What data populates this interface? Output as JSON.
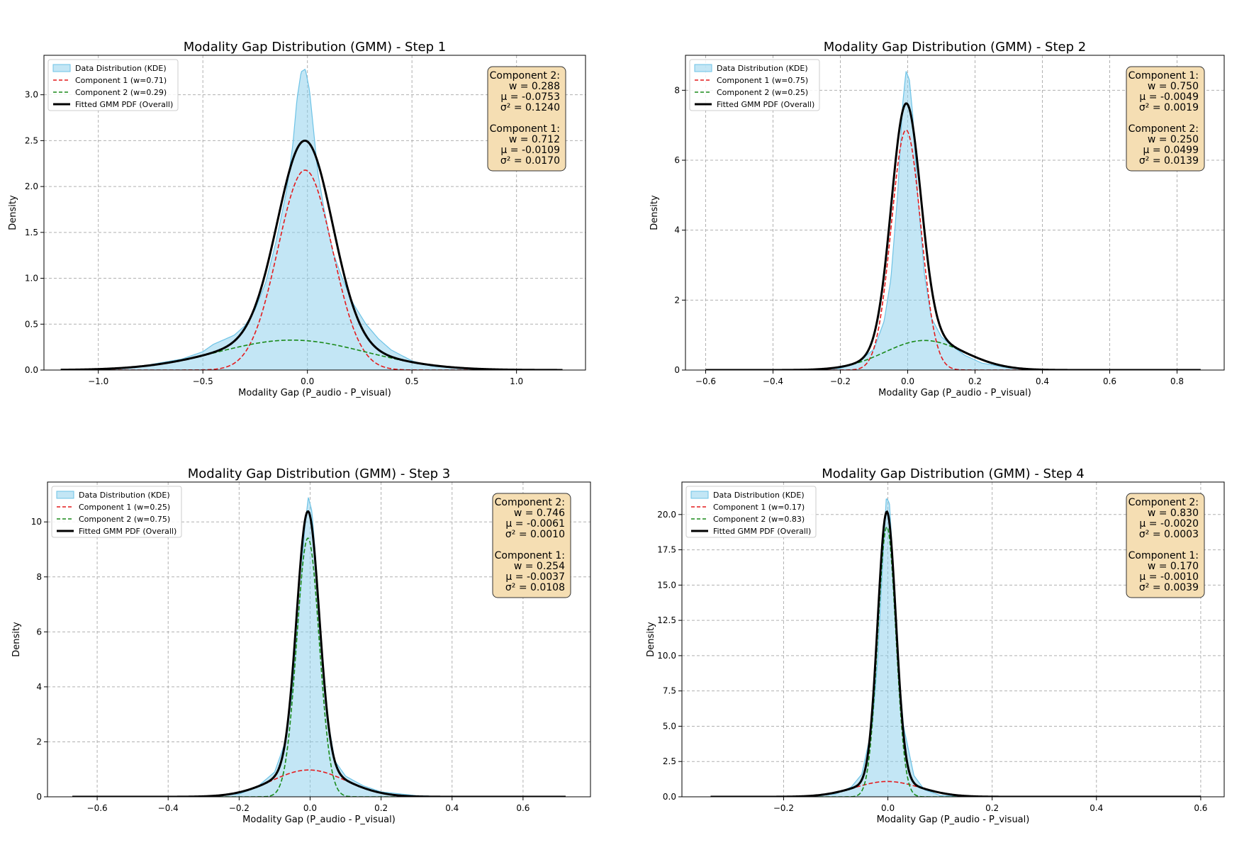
{
  "colors": {
    "kde_fill": "#87ceeb",
    "kde_line": "#6ec3e6",
    "comp1": "#e41a1c",
    "comp2": "#1a8a1a",
    "overall": "#000000",
    "box_fill": "#f5deb3",
    "grid": "#b0b0b0"
  },
  "chart_data": [
    {
      "type": "line",
      "title": "Modality Gap Distribution (GMM) - Step 1",
      "xlabel": "Modality Gap (P_audio - P_visual)",
      "ylabel": "Density",
      "xlim": [
        -1.26,
        1.33
      ],
      "ylim": [
        0,
        3.43
      ],
      "xticks": [
        -1.0,
        -0.5,
        0.0,
        0.5,
        1.0
      ],
      "xtick_labels": [
        "−1.0",
        "−0.5",
        "0.0",
        "0.5",
        "1.0"
      ],
      "yticks": [
        0.0,
        0.5,
        1.0,
        1.5,
        2.0,
        2.5,
        3.0
      ],
      "ytick_labels": [
        "0.0",
        "0.5",
        "1.0",
        "1.5",
        "2.0",
        "2.5",
        "3.0"
      ],
      "x_range": [
        -1.18,
        1.22
      ],
      "legend": [
        "Data Distribution (KDE)",
        "Component 1 (w=0.71)",
        "Component 2 (w=0.29)",
        "Fitted GMM PDF (Overall)"
      ],
      "legend_position": "upper-left",
      "components": [
        {
          "name": "Component 1",
          "weight": 0.712,
          "mean": -0.0109,
          "variance": 0.017
        },
        {
          "name": "Component 2",
          "weight": 0.288,
          "mean": -0.0753,
          "variance": 0.124
        }
      ],
      "kde_points": [
        [
          -1.18,
          0.0
        ],
        [
          -1.0,
          0.01
        ],
        [
          -0.8,
          0.04
        ],
        [
          -0.6,
          0.12
        ],
        [
          -0.5,
          0.2
        ],
        [
          -0.45,
          0.28
        ],
        [
          -0.4,
          0.33
        ],
        [
          -0.35,
          0.38
        ],
        [
          -0.3,
          0.48
        ],
        [
          -0.25,
          0.66
        ],
        [
          -0.2,
          0.95
        ],
        [
          -0.15,
          1.4
        ],
        [
          -0.1,
          1.95
        ],
        [
          -0.07,
          2.45
        ],
        [
          -0.05,
          2.95
        ],
        [
          -0.03,
          3.25
        ],
        [
          -0.01,
          3.28
        ],
        [
          0.01,
          3.05
        ],
        [
          0.03,
          2.6
        ],
        [
          0.05,
          2.15
        ],
        [
          0.08,
          1.75
        ],
        [
          0.12,
          1.3
        ],
        [
          0.17,
          0.98
        ],
        [
          0.22,
          0.72
        ],
        [
          0.28,
          0.5
        ],
        [
          0.34,
          0.34
        ],
        [
          0.4,
          0.22
        ],
        [
          0.5,
          0.1
        ],
        [
          0.6,
          0.04
        ],
        [
          0.8,
          0.01
        ],
        [
          1.0,
          0.0
        ],
        [
          1.22,
          0.0
        ]
      ],
      "annotation": {
        "lines": [
          "Component 2:",
          "w = 0.288",
          "μ = -0.0753",
          "σ² = 0.1240",
          "",
          "Component 1:",
          "w = 0.712",
          "μ = -0.0109",
          "σ² = 0.0170"
        ]
      }
    },
    {
      "type": "line",
      "title": "Modality Gap Distribution (GMM) - Step 2",
      "xlabel": "Modality Gap (P_audio - P_visual)",
      "ylabel": "Density",
      "xlim": [
        -0.66,
        0.94
      ],
      "ylim": [
        0,
        9.0
      ],
      "xticks": [
        -0.6,
        -0.4,
        -0.2,
        0.0,
        0.2,
        0.4,
        0.6,
        0.8
      ],
      "xtick_labels": [
        "−0.6",
        "−0.4",
        "−0.2",
        "0.0",
        "0.2",
        "0.4",
        "0.6",
        "0.8"
      ],
      "yticks": [
        0,
        2,
        4,
        6,
        8
      ],
      "ytick_labels": [
        "0",
        "2",
        "4",
        "6",
        "8"
      ],
      "x_range": [
        -0.6,
        0.87
      ],
      "legend": [
        "Data Distribution (KDE)",
        "Component 1 (w=0.75)",
        "Component 2 (w=0.25)",
        "Fitted GMM PDF (Overall)"
      ],
      "legend_position": "upper-left",
      "components": [
        {
          "name": "Component 1",
          "weight": 0.75,
          "mean": -0.0049,
          "variance": 0.0019
        },
        {
          "name": "Component 2",
          "weight": 0.25,
          "mean": 0.0499,
          "variance": 0.0139
        }
      ],
      "kde_points": [
        [
          -0.6,
          0.0
        ],
        [
          -0.3,
          0.0
        ],
        [
          -0.2,
          0.05
        ],
        [
          -0.15,
          0.2
        ],
        [
          -0.1,
          0.6
        ],
        [
          -0.07,
          1.4
        ],
        [
          -0.05,
          2.6
        ],
        [
          -0.03,
          5.0
        ],
        [
          -0.015,
          7.6
        ],
        [
          -0.005,
          8.55
        ],
        [
          0.005,
          8.3
        ],
        [
          0.015,
          7.3
        ],
        [
          0.03,
          5.0
        ],
        [
          0.05,
          2.7
        ],
        [
          0.07,
          1.5
        ],
        [
          0.1,
          0.95
        ],
        [
          0.13,
          0.7
        ],
        [
          0.17,
          0.42
        ],
        [
          0.22,
          0.2
        ],
        [
          0.3,
          0.06
        ],
        [
          0.4,
          0.01
        ],
        [
          0.87,
          0.0
        ]
      ],
      "annotation": {
        "lines": [
          "Component 1:",
          "w = 0.750",
          "μ = -0.0049",
          "σ² = 0.0019",
          "",
          "Component 2:",
          "w = 0.250",
          "μ = 0.0499",
          "σ² = 0.0139"
        ]
      }
    },
    {
      "type": "line",
      "title": "Modality Gap Distribution (GMM) - Step 3",
      "xlabel": "Modality Gap (P_audio - P_visual)",
      "ylabel": "Density",
      "xlim": [
        -0.74,
        0.79
      ],
      "ylim": [
        0,
        11.45
      ],
      "xticks": [
        -0.6,
        -0.4,
        -0.2,
        0.0,
        0.2,
        0.4,
        0.6
      ],
      "xtick_labels": [
        "−0.6",
        "−0.4",
        "−0.2",
        "0.0",
        "0.2",
        "0.4",
        "0.6"
      ],
      "yticks": [
        0,
        2,
        4,
        6,
        8,
        10
      ],
      "ytick_labels": [
        "0",
        "2",
        "4",
        "6",
        "8",
        "10"
      ],
      "x_range": [
        -0.67,
        0.72
      ],
      "legend": [
        "Data Distribution (KDE)",
        "Component 1 (w=0.25)",
        "Component 2 (w=0.75)",
        "Fitted GMM PDF (Overall)"
      ],
      "legend_position": "upper-left",
      "components": [
        {
          "name": "Component 1",
          "weight": 0.254,
          "mean": -0.0037,
          "variance": 0.0108
        },
        {
          "name": "Component 2",
          "weight": 0.746,
          "mean": -0.0061,
          "variance": 0.001
        }
      ],
      "kde_points": [
        [
          -0.67,
          0.0
        ],
        [
          -0.3,
          0.0
        ],
        [
          -0.2,
          0.1
        ],
        [
          -0.15,
          0.35
        ],
        [
          -0.1,
          0.9
        ],
        [
          -0.07,
          2.0
        ],
        [
          -0.05,
          3.8
        ],
        [
          -0.03,
          7.0
        ],
        [
          -0.015,
          9.8
        ],
        [
          -0.005,
          10.9
        ],
        [
          0.005,
          10.4
        ],
        [
          0.015,
          8.8
        ],
        [
          0.03,
          5.8
        ],
        [
          0.05,
          2.8
        ],
        [
          0.07,
          1.3
        ],
        [
          0.1,
          0.75
        ],
        [
          0.15,
          0.4
        ],
        [
          0.2,
          0.18
        ],
        [
          0.3,
          0.04
        ],
        [
          0.4,
          0.0
        ],
        [
          0.72,
          0.0
        ]
      ],
      "annotation": {
        "lines": [
          "Component 2:",
          "w = 0.746",
          "μ = -0.0061",
          "σ² = 0.0010",
          "",
          "Component 1:",
          "w = 0.254",
          "μ = -0.0037",
          "σ² = 0.0108"
        ]
      }
    },
    {
      "type": "line",
      "title": "Modality Gap Distribution (GMM) - Step 4",
      "xlabel": "Modality Gap (P_audio - P_visual)",
      "ylabel": "Density",
      "xlim": [
        -0.395,
        0.645
      ],
      "ylim": [
        0,
        22.3
      ],
      "xticks": [
        -0.2,
        0.0,
        0.2,
        0.4,
        0.6
      ],
      "xtick_labels": [
        "−0.2",
        "0.0",
        "0.2",
        "0.4",
        "0.6"
      ],
      "yticks": [
        0.0,
        2.5,
        5.0,
        7.5,
        10.0,
        12.5,
        15.0,
        17.5,
        20.0
      ],
      "ytick_labels": [
        "0.0",
        "2.5",
        "5.0",
        "7.5",
        "10.0",
        "12.5",
        "15.0",
        "17.5",
        "20.0"
      ],
      "x_range": [
        -0.34,
        0.6
      ],
      "legend": [
        "Data Distribution (KDE)",
        "Component 1 (w=0.17)",
        "Component 2 (w=0.83)",
        "Fitted GMM PDF (Overall)"
      ],
      "legend_position": "upper-left",
      "components": [
        {
          "name": "Component 1",
          "weight": 0.17,
          "mean": -0.001,
          "variance": 0.0039
        },
        {
          "name": "Component 2",
          "weight": 0.83,
          "mean": -0.002,
          "variance": 0.0003
        }
      ],
      "kde_points": [
        [
          -0.34,
          0.0
        ],
        [
          -0.15,
          0.0
        ],
        [
          -0.1,
          0.2
        ],
        [
          -0.07,
          0.7
        ],
        [
          -0.05,
          1.6
        ],
        [
          -0.03,
          5.0
        ],
        [
          -0.02,
          9.5
        ],
        [
          -0.01,
          16.5
        ],
        [
          -0.003,
          21.2
        ],
        [
          0.003,
          20.8
        ],
        [
          0.01,
          16.5
        ],
        [
          0.02,
          9.5
        ],
        [
          0.03,
          5.0
        ],
        [
          0.05,
          1.5
        ],
        [
          0.07,
          0.5
        ],
        [
          0.1,
          0.1
        ],
        [
          0.15,
          0.0
        ],
        [
          0.6,
          0.0
        ]
      ],
      "annotation": {
        "lines": [
          "Component 2:",
          "w = 0.830",
          "μ = -0.0020",
          "σ² = 0.0003",
          "",
          "Component 1:",
          "w = 0.170",
          "μ = -0.0010",
          "σ² = 0.0039"
        ]
      }
    }
  ]
}
